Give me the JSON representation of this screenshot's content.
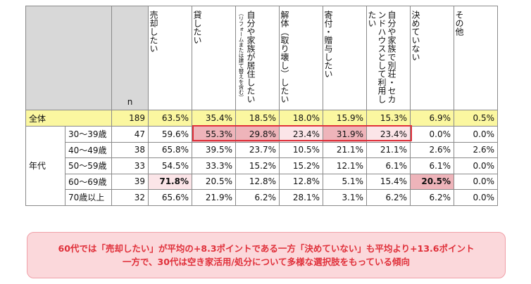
{
  "headers": {
    "n": "n",
    "cols": [
      {
        "text": "売却したい",
        "small": ""
      },
      {
        "text": "貸したい",
        "small": ""
      },
      {
        "text": "自分や家族が居住したい",
        "small": "（リフォームまたは建て替えを含む）"
      },
      {
        "text": "解体（取り壊し）したい",
        "small": ""
      },
      {
        "text": "寄付・贈与したい",
        "small": ""
      },
      {
        "text": "自分や家族で別荘・セカンドハウスとして利用したい",
        "small": ""
      },
      {
        "text": "決めていない",
        "small": ""
      },
      {
        "text": "その他",
        "small": ""
      }
    ]
  },
  "total": {
    "label": "全体",
    "n": "189",
    "values": [
      "63.5%",
      "35.4%",
      "18.5%",
      "18.0%",
      "15.9%",
      "15.3%",
      "6.9%",
      "0.5%"
    ]
  },
  "group_label": "年代",
  "rows": [
    {
      "label": "30～39歳",
      "n": "47",
      "values": [
        "59.6%",
        "55.3%",
        "29.8%",
        "23.4%",
        "31.9%",
        "23.4%",
        "0.0%",
        "0.0%"
      ]
    },
    {
      "label": "40～49歳",
      "n": "38",
      "values": [
        "65.8%",
        "39.5%",
        "23.7%",
        "10.5%",
        "21.1%",
        "21.1%",
        "2.6%",
        "2.6%"
      ]
    },
    {
      "label": "50～59歳",
      "n": "33",
      "values": [
        "54.5%",
        "33.3%",
        "15.2%",
        "15.2%",
        "12.1%",
        "6.1%",
        "6.1%",
        "0.0%"
      ]
    },
    {
      "label": "60～69歳",
      "n": "39",
      "values": [
        "71.8%",
        "20.5%",
        "12.8%",
        "12.8%",
        "5.1%",
        "15.4%",
        "20.5%",
        "0.0%"
      ]
    },
    {
      "label": "70歳以上",
      "n": "32",
      "values": [
        "65.6%",
        "21.9%",
        "6.2%",
        "28.1%",
        "3.1%",
        "6.2%",
        "6.2%",
        "0.0%"
      ]
    }
  ],
  "highlights": {
    "dark": "#eeb4ba",
    "light": "#fbe5e8",
    "total_bg": "#fbf7a0",
    "accent": "#e0303a"
  },
  "note": {
    "line1": "60代では「売却したい」が平均の+8.3ポイントである一方「決めていない」も平均より+13.6ポイント",
    "line2": "一方で、30代は空き家活用/処分について多様な選択肢をもっている傾向"
  }
}
